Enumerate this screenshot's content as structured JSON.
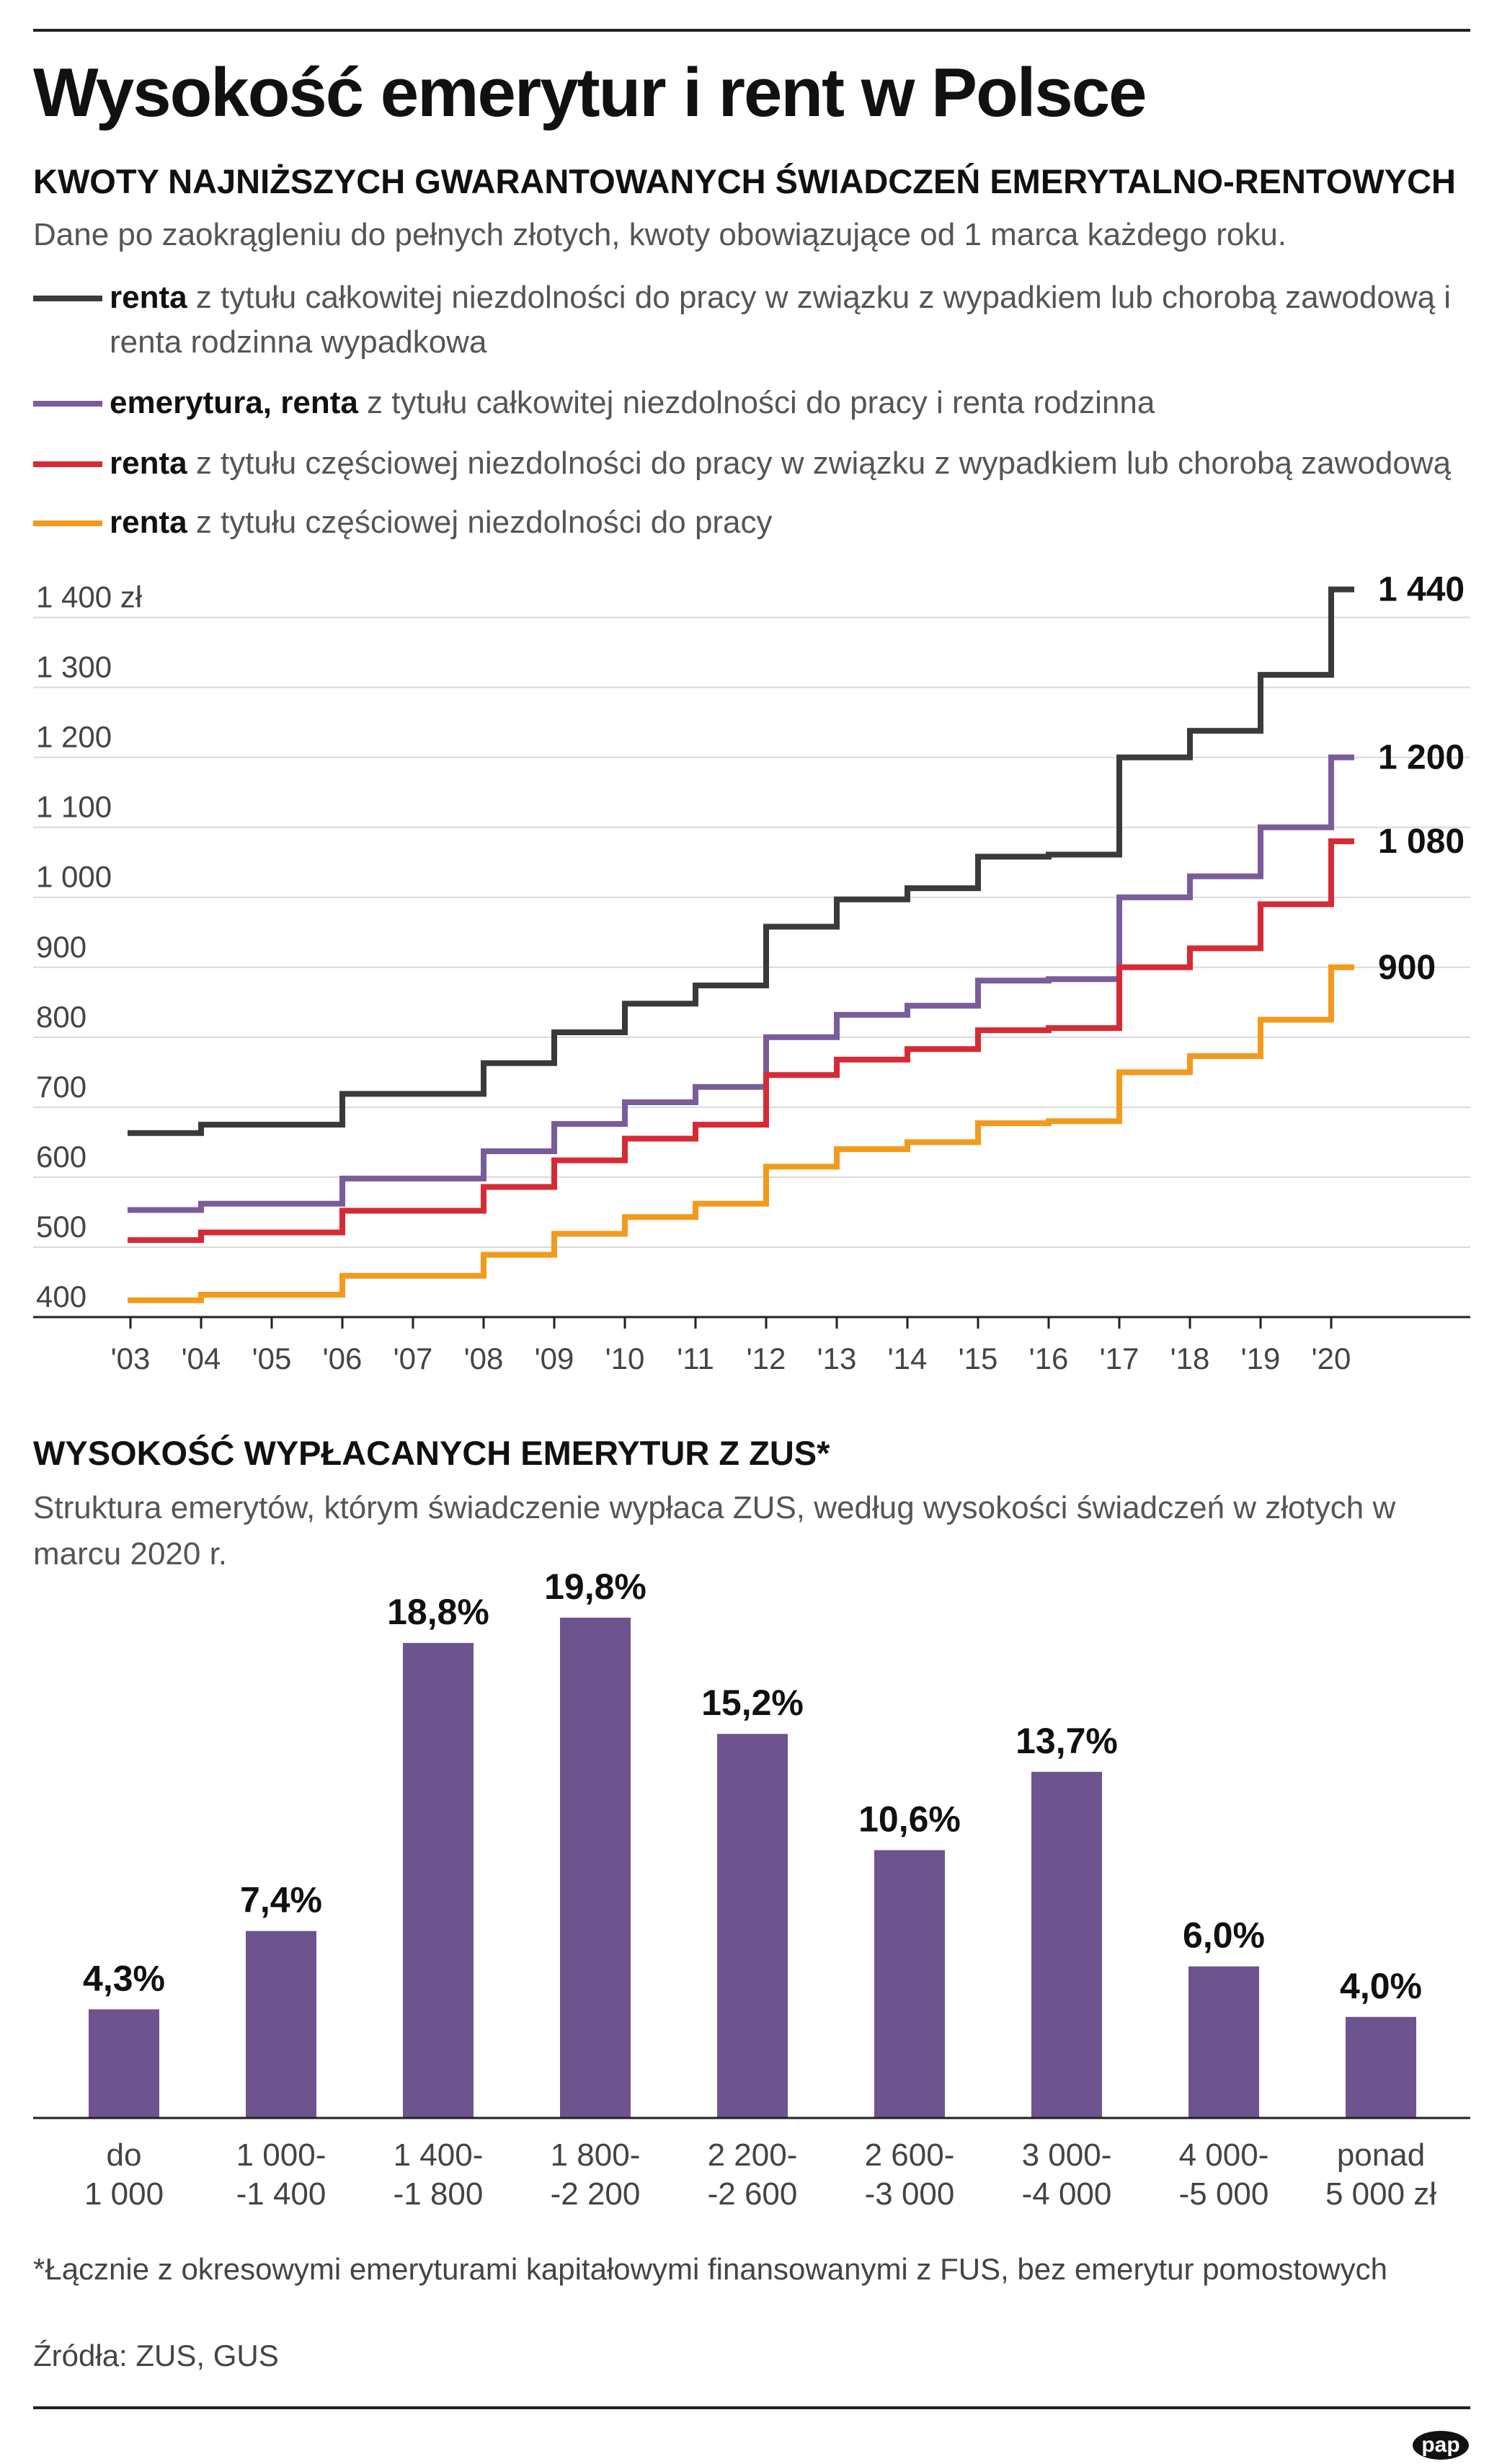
{
  "title": "Wysokość emerytur i rent w Polsce",
  "section1": {
    "heading": "KWOTY NAJNIŻSZYCH GWARANTOWANYCH ŚWIADCZEŃ EMERYTALNO-RENTOWYCH",
    "subtitle": "Dane po zaokrągleniu do pełnych złotych, kwoty obowiązujące od 1 marca każdego roku.",
    "legend": [
      {
        "bold": "renta",
        "rest": " z tytułu całkowitej niezdolności do pracy w związku z wypadkiem lub chorobą zawodową i renta rodzinna wypadkowa",
        "color": "#3a3a3a"
      },
      {
        "bold": "emerytura, renta",
        "rest": " z tytułu całkowitej niezdolności do pracy i renta rodzinna",
        "color": "#7a5c9a"
      },
      {
        "bold": "renta",
        "rest": " z tytułu częściowej niezdolności do pracy w związku z wypadkiem lub chorobą zawodową",
        "color": "#d62b35"
      },
      {
        "bold": "renta",
        "rest": " z tytułu częściowej niezdolności do pracy",
        "color": "#f39a1e"
      }
    ]
  },
  "section2": {
    "heading": "WYSOKOŚĆ WYPŁACANYCH EMERYTUR Z ZUS*",
    "subtitle": "Struktura emerytów, którym świadczenie wypłaca ZUS, według wysokości świadczeń w złotych w marcu 2020 r."
  },
  "footnote": "*Łącznie z okresowymi emeryturami kapitałowymi finansowanymi z FUS, bez emerytur pomostowych",
  "source": "Źródła: ZUS, GUS",
  "logo": "pap",
  "chart_data": [
    {
      "type": "line",
      "step": true,
      "x": [
        "'03",
        "'04",
        "'05",
        "'06",
        "'07",
        "'08",
        "'09",
        "'10",
        "'11",
        "'12",
        "'13",
        "'14",
        "'15",
        "'16",
        "'17",
        "'18",
        "'19",
        "'20"
      ],
      "ylim": [
        400,
        1450
      ],
      "yticks": [
        "1 400 zł",
        "1 300",
        "1 200",
        "1 100",
        "1 000",
        "900",
        "800",
        "700",
        "600",
        "500",
        "400"
      ],
      "ytick_values": [
        1400,
        1300,
        1200,
        1100,
        1000,
        900,
        800,
        700,
        600,
        500,
        400
      ],
      "grid": true,
      "series": [
        {
          "color": "#3a3a3a",
          "end_label": "1 440",
          "values": [
            663,
            675,
            675,
            719,
            719,
            763,
            807,
            848,
            874,
            958,
            997,
            1013,
            1058,
            1061,
            1200,
            1238,
            1318,
            1440
          ]
        },
        {
          "color": "#7a5c9a",
          "end_label": "1 200",
          "values": [
            553,
            562,
            562,
            598,
            598,
            637,
            676,
            707,
            729,
            800,
            832,
            845,
            881,
            883,
            1000,
            1030,
            1100,
            1200
          ]
        },
        {
          "color": "#d62b35",
          "end_label": "1 080",
          "values": [
            510,
            521,
            521,
            552,
            552,
            586,
            624,
            655,
            675,
            746,
            768,
            783,
            810,
            813,
            900,
            927,
            990,
            1080
          ]
        },
        {
          "color": "#f39a1e",
          "end_label": "900",
          "values": [
            424,
            432,
            432,
            459,
            459,
            489,
            519,
            543,
            562,
            615,
            640,
            650,
            677,
            680,
            750,
            773,
            825,
            900
          ]
        }
      ]
    },
    {
      "type": "bar",
      "categories": [
        [
          "do",
          "1 000"
        ],
        [
          "1 000-",
          "-1 400"
        ],
        [
          "1 400-",
          "-1 800"
        ],
        [
          "1 800-",
          "-2 200"
        ],
        [
          "2 200-",
          "-2 600"
        ],
        [
          "2 600-",
          "-3 000"
        ],
        [
          "3 000-",
          "-4 000"
        ],
        [
          "4 000-",
          "-5 000"
        ],
        [
          "ponad",
          "5 000 zł"
        ]
      ],
      "values": [
        4.3,
        7.4,
        18.8,
        19.8,
        15.2,
        10.6,
        13.7,
        6.0,
        4.0
      ],
      "labels": [
        "4,3%",
        "7,4%",
        "18,8%",
        "19,8%",
        "15,2%",
        "10,6%",
        "13,7%",
        "6,0%",
        "4,0%"
      ],
      "ylim": [
        0,
        19.8
      ],
      "color": "#6e548e"
    }
  ]
}
